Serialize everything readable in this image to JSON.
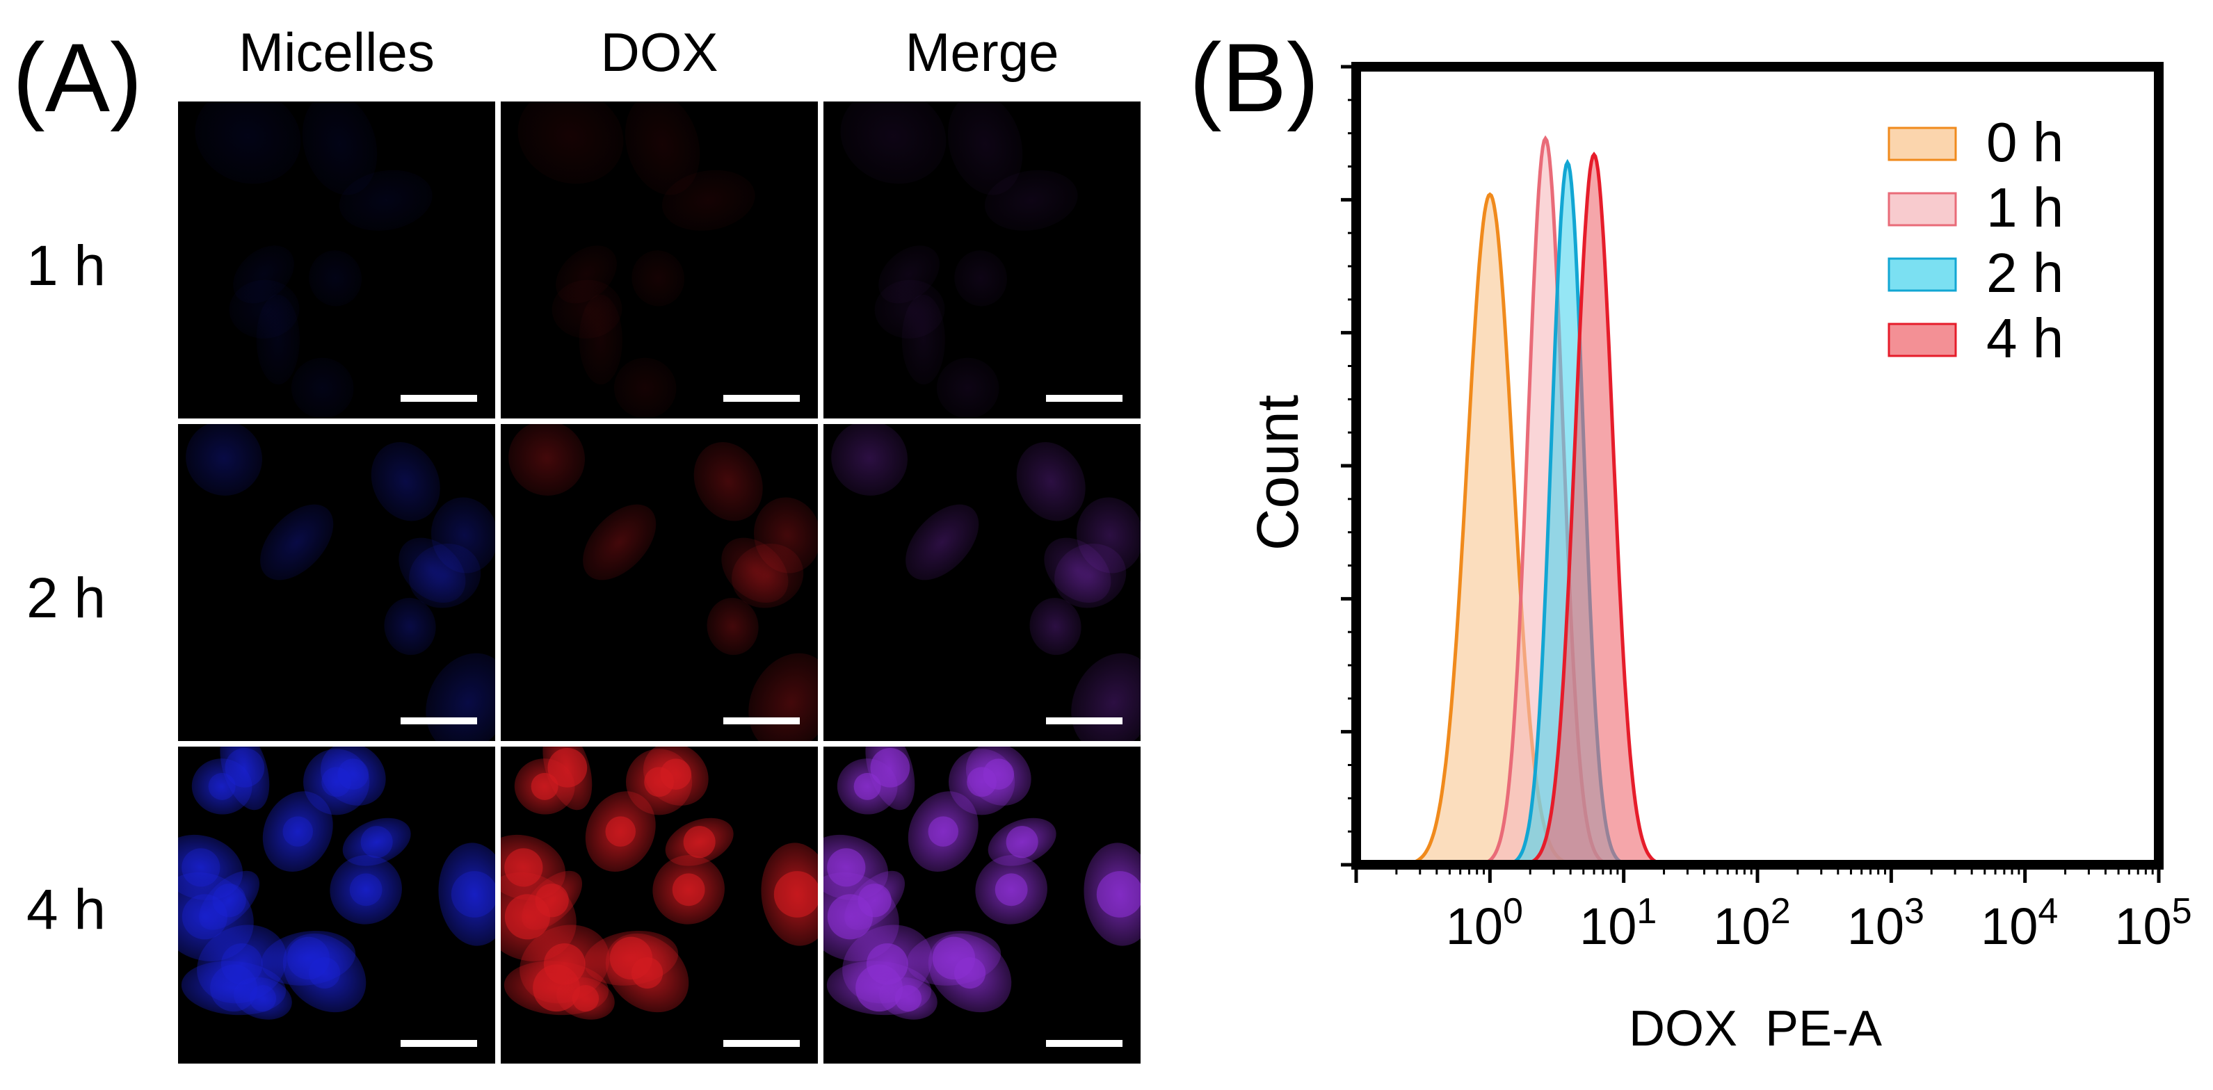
{
  "panel_a": {
    "letter": "(A)",
    "columns": [
      "Micelles",
      "DOX",
      "Merge"
    ],
    "rows": [
      "1 h",
      "2 h",
      "4 h"
    ],
    "channel_colors": {
      "micelles": "#1a22d8",
      "dox": "#d21a20",
      "merge": "#8a2fd0"
    }
  },
  "panel_b": {
    "letter": "(B)"
  },
  "chart_data": {
    "type": "area",
    "title": "",
    "xlabel": "DOX  PE-A",
    "ylabel": "Count",
    "xscale": "log10",
    "xlim": [
      0.1,
      100000
    ],
    "ylim": [
      0,
      1
    ],
    "x_tick_labels": [
      {
        "base": "10",
        "exp": "0"
      },
      {
        "base": "10",
        "exp": "1"
      },
      {
        "base": "10",
        "exp": "2"
      },
      {
        "base": "10",
        "exp": "3"
      },
      {
        "base": "10",
        "exp": "4"
      },
      {
        "base": "10",
        "exp": "5"
      }
    ],
    "legend_position": "top-right",
    "series": [
      {
        "name": "0 h",
        "peak_x": 1.0,
        "peak_y": 0.84,
        "sigma_log": 0.17,
        "fill": "#f9c791",
        "stroke": "#f08a1c"
      },
      {
        "name": "1 h",
        "peak_x": 2.6,
        "peak_y": 0.91,
        "sigma_log": 0.13,
        "fill": "#f6b9bd",
        "stroke": "#e96b78"
      },
      {
        "name": "2 h",
        "peak_x": 3.8,
        "peak_y": 0.88,
        "sigma_log": 0.12,
        "fill": "#4fd6ee",
        "stroke": "#12a6d3"
      },
      {
        "name": "4 h",
        "peak_x": 6.0,
        "peak_y": 0.89,
        "sigma_log": 0.14,
        "fill": "#ef6b72",
        "stroke": "#e61c2a"
      }
    ]
  }
}
